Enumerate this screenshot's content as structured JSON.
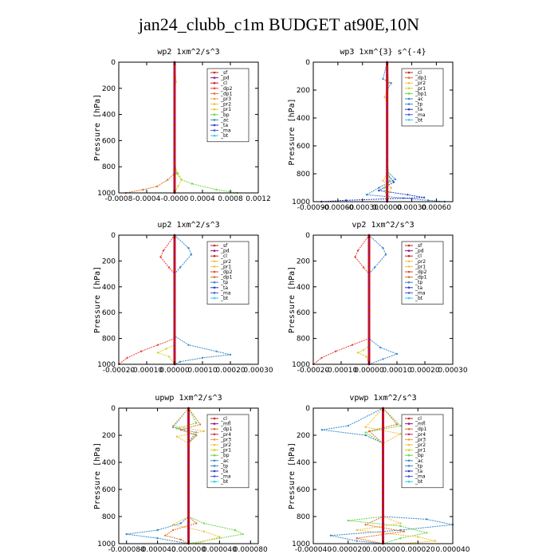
{
  "page": {
    "title": "jan24_clubb_c1m  BUDGET at90E,10N"
  },
  "colors": {
    "_sf": "#cc2222",
    "_pd": "#8b1a8b",
    "_cl": "#cc2222",
    "_dp2": "#e8423a",
    "_dp1": "#e07030",
    "_pr3": "#f0a040",
    "_pr2": "#f0c040",
    "_pr1": "#d8d030",
    "_bp": "#6ad84a",
    "_bp1": "#6ad84a",
    "_ac": "#3a8ac8",
    "_tp": "#3a8ac8",
    "_ta": "#2a3ac8",
    "_ma": "#4a5ad8",
    "_bt": "#30d0e0",
    "_mfl": "#8b1a8b",
    "_pr4": "#c83060",
    "main": "#d01010",
    "dev": "#2a8ad8"
  },
  "chart_data": [
    {
      "type": "line",
      "title": "wp2  1xm^2/s^3",
      "ylabel": "Pressure [hPa]",
      "ylim": [
        1000,
        0
      ],
      "yticks": [
        0,
        200,
        400,
        600,
        800,
        1000
      ],
      "xlim": [
        -0.0008,
        0.0012
      ],
      "xtick_labels": [
        "-0.0008",
        "-0.0004",
        "-0.0000",
        "0.0004",
        "0.0008",
        "0.0012"
      ],
      "xticks": [
        -0.0008,
        -0.0004,
        0.0,
        0.0004,
        0.0008,
        0.0012
      ],
      "legend": [
        "_sf",
        "_pd",
        "_cl",
        "_dp2",
        "_dp1",
        "_pr3",
        "_pr2",
        "_pr1",
        "_bp",
        "_ac",
        "_ta",
        "_ma",
        "_bt"
      ],
      "legend_location": "upper-right",
      "series": [
        {
          "name": "_dp1",
          "x": [
            0,
            0,
            0,
            0,
            -0.0001,
            -0.00025,
            -0.00045,
            -0.0007
          ],
          "y": [
            0,
            400,
            800,
            850,
            900,
            950,
            975,
            1000
          ]
        },
        {
          "name": "_bp",
          "x": [
            0,
            0,
            3e-05,
            0.0001,
            0.00025,
            0.0006,
            0.0009
          ],
          "y": [
            0,
            750,
            850,
            900,
            930,
            975,
            1000
          ]
        },
        {
          "name": "_pr1",
          "x": [
            0,
            2e-05,
            0,
            0,
            5e-05,
            0.0001,
            5e-05,
            0
          ],
          "y": [
            0,
            150,
            200,
            800,
            850,
            900,
            950,
            1000
          ]
        },
        {
          "name": "_cl",
          "x": [
            0,
            0,
            0,
            0,
            0,
            0
          ],
          "y": [
            0,
            200,
            400,
            600,
            800,
            1000
          ]
        }
      ]
    },
    {
      "type": "line",
      "title": "wp3  1xm^{3} s^{-4}",
      "ylabel": "Pressure [hPa]",
      "ylim": [
        1000,
        0
      ],
      "yticks": [
        0,
        200,
        400,
        600,
        800,
        1000
      ],
      "xlim": [
        -0.0009,
        0.0008
      ],
      "xtick_labels": [
        "-0.00090",
        "-0.00060",
        "-0.00030",
        "0.00000",
        "0.00030",
        "0.00060"
      ],
      "xticks": [
        -0.0009,
        -0.0006,
        -0.0003,
        0.0,
        0.0003,
        0.0006
      ],
      "legend": [
        "_cl",
        "_dp1",
        "_pr2",
        "_pr1",
        "_bp1",
        "_ac",
        "_tp",
        "_ta",
        "_ma",
        "_bt"
      ],
      "legend_location": "upper-right",
      "series": [
        {
          "name": "_tp",
          "x": [
            0,
            -5e-05,
            5e-05,
            0,
            0,
            0.0001,
            -0.0001,
            -0.00025,
            0.0002,
            0.0005,
            0.0007
          ],
          "y": [
            0,
            120,
            150,
            200,
            780,
            840,
            900,
            950,
            975,
            990,
            1000
          ]
        },
        {
          "name": "_ta",
          "x": [
            0,
            0,
            8e-05,
            -0.0001,
            0.00025,
            0.00045,
            -0.0005,
            -0.0008
          ],
          "y": [
            0,
            800,
            860,
            920,
            950,
            970,
            990,
            1000
          ]
        },
        {
          "name": "_pr2",
          "x": [
            0,
            2e-05,
            -3e-05,
            0,
            0,
            -5e-05,
            5e-05,
            0
          ],
          "y": [
            0,
            150,
            250,
            300,
            800,
            850,
            900,
            1000
          ]
        },
        {
          "name": "_bp1",
          "x": [
            0,
            0,
            3e-05,
            -3e-05,
            0
          ],
          "y": [
            0,
            700,
            850,
            900,
            1000
          ]
        },
        {
          "name": "_cl",
          "x": [
            0,
            0,
            0,
            0,
            0,
            0
          ],
          "y": [
            0,
            200,
            400,
            600,
            800,
            1000
          ]
        }
      ]
    },
    {
      "type": "line",
      "title": "up2  1xm^2/s^3",
      "ylabel": "Pressure [hPa]",
      "ylim": [
        1000,
        0
      ],
      "yticks": [
        0,
        200,
        400,
        600,
        800,
        1000
      ],
      "xlim": [
        -0.0002,
        0.0003
      ],
      "xtick_labels": [
        "-0.00020",
        "-0.00010",
        "0.00000",
        "0.00010",
        "0.00020",
        "0.00030"
      ],
      "xticks": [
        -0.0002,
        -0.0001,
        0.0,
        0.0001,
        0.0002,
        0.0003
      ],
      "legend": [
        "_sf",
        "_pd",
        "_cl",
        "_pr2",
        "_pr1",
        "_dp2",
        "_dp1",
        "_tp",
        "_ta",
        "_ma",
        "_bt"
      ],
      "legend_location": "upper-right",
      "series": [
        {
          "name": "_tp",
          "x": [
            0,
            5e-05,
            6e-05,
            2e-05,
            0,
            0,
            5e-05,
            0.00015,
            0.0002,
            0.0001,
            2e-05,
            0
          ],
          "y": [
            0,
            100,
            150,
            250,
            300,
            780,
            850,
            900,
            925,
            950,
            980,
            1000
          ]
        },
        {
          "name": "_dp2",
          "x": [
            0,
            -4e-05,
            -5e-05,
            -2e-05,
            0,
            0,
            -6e-05,
            -0.00012,
            -0.00017,
            -0.0002
          ],
          "y": [
            0,
            120,
            170,
            250,
            300,
            800,
            850,
            900,
            950,
            1000
          ]
        },
        {
          "name": "_pr1",
          "x": [
            0,
            0,
            -3e-05,
            -6e-05,
            -2e-05,
            0
          ],
          "y": [
            0,
            850,
            880,
            910,
            940,
            1000
          ]
        },
        {
          "name": "_cl",
          "x": [
            0,
            0,
            0,
            0,
            0,
            0
          ],
          "y": [
            0,
            200,
            400,
            600,
            800,
            1000
          ]
        }
      ]
    },
    {
      "type": "line",
      "title": "vp2  1xm^2/s^3",
      "ylabel": "Pressure [hPa]",
      "ylim": [
        1000,
        0
      ],
      "yticks": [
        0,
        200,
        400,
        600,
        800,
        1000
      ],
      "xlim": [
        -0.0002,
        0.0003
      ],
      "xtick_labels": [
        "-0.00020",
        "-0.00010",
        "0.00000",
        "0.00010",
        "0.00020",
        "0.00030"
      ],
      "xticks": [
        -0.0002,
        -0.0001,
        0.0,
        0.0001,
        0.0002,
        0.0003
      ],
      "legend": [
        "_sf",
        "_pd",
        "_cl",
        "_pr2",
        "_pr1",
        "_dp2",
        "_dp1",
        "_tp",
        "_ta",
        "_ma",
        "_bt"
      ],
      "legend_location": "upper-right",
      "series": [
        {
          "name": "_tp",
          "x": [
            0,
            5e-05,
            6e-05,
            2e-05,
            0,
            0,
            4e-05,
            0.0001,
            5e-05,
            0
          ],
          "y": [
            0,
            100,
            150,
            250,
            300,
            800,
            870,
            920,
            960,
            1000
          ]
        },
        {
          "name": "_dp2",
          "x": [
            0,
            -4e-05,
            -5e-05,
            -2e-05,
            0,
            0,
            -6e-05,
            -0.00012,
            -0.00017,
            -0.0002
          ],
          "y": [
            0,
            120,
            170,
            250,
            300,
            800,
            850,
            900,
            950,
            1000
          ]
        },
        {
          "name": "_pr1",
          "x": [
            0,
            0,
            -2e-05,
            -4e-05,
            -1e-05,
            0
          ],
          "y": [
            0,
            860,
            890,
            910,
            940,
            1000
          ]
        },
        {
          "name": "_cl",
          "x": [
            0,
            0,
            0,
            0,
            0,
            0
          ],
          "y": [
            0,
            200,
            400,
            600,
            800,
            1000
          ]
        }
      ]
    },
    {
      "type": "line",
      "title": "upwp  1xm^2/s^3",
      "ylabel": "Pressure [hPa]",
      "ylim": [
        1000,
        0
      ],
      "yticks": [
        0,
        200,
        400,
        600,
        800,
        1000
      ],
      "xlim": [
        -9e-05,
        9e-05
      ],
      "xtick_labels": [
        "-0.000080",
        "-0.000040",
        "0.000000",
        "0.000040",
        "0.000080"
      ],
      "xticks": [
        -8e-05,
        -4e-05,
        0.0,
        4e-05,
        8e-05
      ],
      "legend": [
        "_cl",
        "_mfl",
        "_dp1",
        "_pr4",
        "_pr3",
        "_pr2",
        "_pr1",
        "_bp",
        "_ac",
        "_tp",
        "_ta",
        "_ma",
        "_bt"
      ],
      "legend_location": "upper-right",
      "series": [
        {
          "name": "_tp",
          "x": [
            0,
            -2e-05,
            1e-05,
            0,
            0,
            -1e-05,
            -4e-05,
            -8e-05,
            -4e-05,
            0
          ],
          "y": [
            0,
            140,
            180,
            250,
            800,
            850,
            900,
            930,
            960,
            1000
          ]
        },
        {
          "name": "_bp",
          "x": [
            0,
            1e-05,
            -1.5e-05,
            1e-05,
            0,
            0,
            2e-05,
            6e-05,
            7e-05,
            4e-05,
            0
          ],
          "y": [
            0,
            110,
            150,
            200,
            260,
            800,
            850,
            900,
            930,
            960,
            1000
          ]
        },
        {
          "name": "_pr2",
          "x": [
            0,
            -2e-05,
            2e-05,
            -1.5e-05,
            0,
            0,
            -2e-05,
            2e-05,
            4e-05,
            1e-05
          ],
          "y": [
            0,
            130,
            170,
            210,
            260,
            800,
            860,
            910,
            950,
            1000
          ]
        },
        {
          "name": "_dp1",
          "x": [
            0,
            1.5e-05,
            -1e-05,
            1e-05,
            0,
            0,
            1e-05,
            -2e-05,
            -3e-05,
            -1e-05,
            0
          ],
          "y": [
            0,
            120,
            160,
            200,
            260,
            800,
            850,
            900,
            940,
            970,
            1000
          ]
        },
        {
          "name": "_cl",
          "x": [
            0,
            0,
            0,
            0,
            0,
            0
          ],
          "y": [
            0,
            200,
            400,
            600,
            800,
            1000
          ]
        }
      ]
    },
    {
      "type": "line",
      "title": "vpwp  1xm^2/s^3",
      "ylabel": "Pressure [hPa]",
      "ylim": [
        1000,
        0
      ],
      "yticks": [
        0,
        200,
        400,
        600,
        800,
        1000
      ],
      "xlim": [
        -4e-05,
        4e-05
      ],
      "xtick_labels": [
        "-0.000040",
        "-0.000020",
        "0.000000",
        "0.000020",
        "0.000040"
      ],
      "xticks": [
        -4e-05,
        -2e-05,
        0.0,
        2e-05,
        4e-05
      ],
      "legend": [
        "_cl",
        "_mfl",
        "_dp1",
        "_pr4",
        "_pr3",
        "_pr2",
        "_pr1",
        "_bp",
        "_ac",
        "_tp",
        "_ta",
        "_ma",
        "_bt"
      ],
      "legend_location": "upper-right",
      "series": [
        {
          "name": "_tp",
          "x": [
            0,
            -2e-05,
            -3.5e-05,
            -1e-05,
            0,
            0,
            2.5e-05,
            4e-05,
            1e-05,
            -3e-05,
            -1.5e-05,
            0
          ],
          "y": [
            0,
            130,
            160,
            200,
            260,
            800,
            820,
            860,
            900,
            940,
            980,
            1000
          ]
        },
        {
          "name": "_bp",
          "x": [
            0,
            1e-05,
            -1e-05,
            0,
            0,
            -2e-05,
            1e-05,
            2.5e-05,
            1e-05,
            0
          ],
          "y": [
            0,
            130,
            180,
            260,
            800,
            830,
            870,
            920,
            960,
            1000
          ]
        },
        {
          "name": "_pr2",
          "x": [
            0,
            -1e-05,
            1e-05,
            0,
            0,
            1e-05,
            -1.5e-05,
            2e-05,
            3e-05,
            1e-05
          ],
          "y": [
            0,
            140,
            190,
            260,
            800,
            850,
            900,
            950,
            980,
            1000
          ]
        },
        {
          "name": "_dp1",
          "x": [
            0,
            8e-06,
            -8e-06,
            0,
            0,
            -1e-05,
            1.2e-05,
            -1.5e-05,
            0
          ],
          "y": [
            0,
            120,
            170,
            260,
            800,
            860,
            910,
            960,
            1000
          ]
        },
        {
          "name": "_cl",
          "x": [
            0,
            0,
            0,
            0,
            0,
            0
          ],
          "y": [
            0,
            200,
            400,
            600,
            800,
            1000
          ]
        }
      ]
    }
  ]
}
